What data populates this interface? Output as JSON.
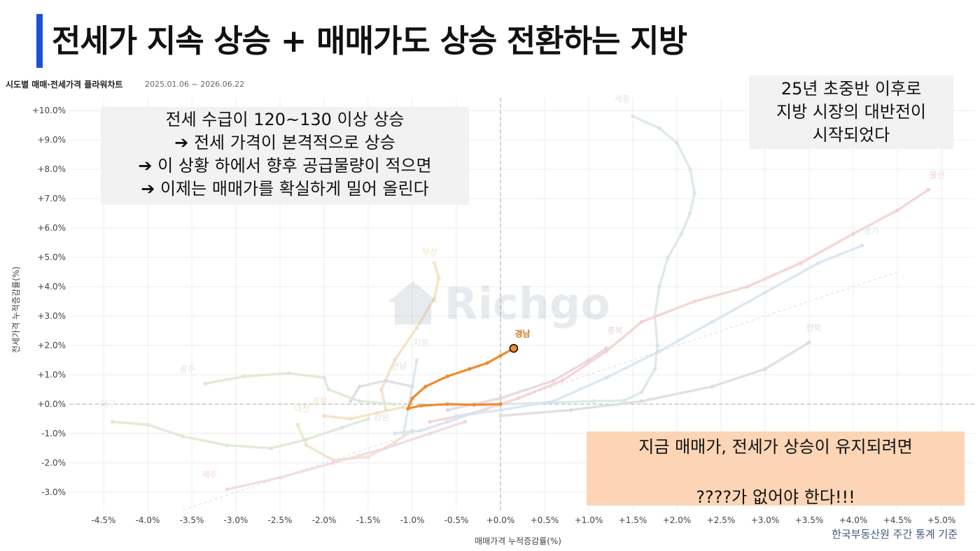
{
  "page": {
    "title": "전세가 지속 상승 + 매매가도 상승 전환하는 지방",
    "chart_title": "시도별 매매·전세가격 플라워차트",
    "date_range": "2025.01.06 ~ 2026.06.22",
    "x_axis_label": "매매가격 누적증감률(%)",
    "y_axis_label": "전세가격 누적증감률(%)",
    "source": "한국부동산원 주간 통계 기준",
    "watermark": "Richgo"
  },
  "notes": {
    "left": [
      "전세 수급이 120~130 이상 상승",
      "➔ 전세 가격이 본격적으로 상승",
      "➔  이 상황 하에서 향후 공급물량이 적으면",
      "➔ 이제는 매매가를 확실하게 밀어 올린다"
    ],
    "right": [
      "25년 초중반 이후로",
      "지방 시장의 대반전이",
      "시작되었다"
    ],
    "bottom": [
      "지금 매매가, 전세가 상승이 유지되려면",
      "",
      "????가  없어야 한다!!!"
    ]
  },
  "colors": {
    "accent_bar": "#1d4fd8",
    "highlight": "#f08a2c",
    "bottom_note_bg": "#fbd5b5",
    "note_bg": "#f2f2f2"
  },
  "chart_data": {
    "type": "line",
    "xlabel": "매매가격 누적증감률(%)",
    "ylabel": "전세가격 누적증감률(%)",
    "xlim": [
      -4.75,
      5.2
    ],
    "ylim": [
      -3.6,
      10.4
    ],
    "x_ticks": [
      -4.5,
      -4.0,
      -3.5,
      -3.0,
      -2.5,
      -2.0,
      -1.5,
      -1.0,
      -0.5,
      0.0,
      0.5,
      1.0,
      1.5,
      2.0,
      2.5,
      3.0,
      3.5,
      4.0,
      4.5,
      5.0
    ],
    "x_tick_labels": [
      "-4.5%",
      "-4.0%",
      "-3.5%",
      "-3.0%",
      "-2.5%",
      "-2.0%",
      "-1.5%",
      "-1.0%",
      "-0.5%",
      "+0.0%",
      "+0.5%",
      "+1.0%",
      "+1.5%",
      "+2.0%",
      "+2.5%",
      "+3.0%",
      "+3.5%",
      "+4.0%",
      "+4.5%",
      "+5.0%"
    ],
    "y_ticks": [
      -3,
      -2,
      -1,
      0,
      1,
      2,
      3,
      4,
      5,
      6,
      7,
      8,
      9,
      10
    ],
    "y_tick_labels": [
      "-3.0%",
      "-2.0%",
      "-1.0%",
      "+0.0%",
      "+1.0%",
      "+2.0%",
      "+3.0%",
      "+4.0%",
      "+5.0%",
      "+6.0%",
      "+7.0%",
      "+8.0%",
      "+9.0%",
      "+10.0%"
    ],
    "grid": true,
    "series": [
      {
        "name": "세종",
        "color": "#d9e6e6",
        "highlight": false,
        "label_at": [
          1.38,
          10.3
        ],
        "points": [
          [
            0.0,
            0.0
          ],
          [
            0.55,
            0.05
          ],
          [
            1.05,
            0.1
          ],
          [
            1.4,
            0.12
          ],
          [
            1.6,
            0.4
          ],
          [
            1.75,
            1.2
          ],
          [
            1.78,
            2.0
          ],
          [
            1.75,
            3.0
          ],
          [
            1.8,
            4.0
          ],
          [
            1.9,
            5.0
          ],
          [
            2.05,
            5.8
          ],
          [
            2.15,
            6.5
          ],
          [
            2.2,
            7.2
          ],
          [
            2.15,
            8.0
          ],
          [
            2.0,
            8.9
          ],
          [
            1.8,
            9.4
          ],
          [
            1.5,
            9.8
          ]
        ]
      },
      {
        "name": "울산",
        "color": "#f4cfcf",
        "highlight": false,
        "label_at": [
          4.95,
          7.7
        ],
        "points": [
          [
            -0.8,
            -0.6
          ],
          [
            -0.3,
            -0.3
          ],
          [
            0.2,
            0.2
          ],
          [
            0.7,
            0.8
          ],
          [
            1.2,
            1.8
          ],
          [
            1.6,
            2.8
          ],
          [
            2.2,
            3.5
          ],
          [
            2.8,
            4.0
          ],
          [
            3.4,
            4.8
          ],
          [
            4.0,
            5.8
          ],
          [
            4.5,
            6.6
          ],
          [
            4.85,
            7.3
          ]
        ]
      },
      {
        "name": "경기",
        "color": "#d7e3ef",
        "highlight": false,
        "label_at": [
          4.2,
          5.8
        ],
        "points": [
          [
            -0.5,
            -0.4
          ],
          [
            0.0,
            -0.2
          ],
          [
            0.6,
            0.1
          ],
          [
            1.2,
            0.9
          ],
          [
            1.8,
            1.8
          ],
          [
            2.4,
            2.8
          ],
          [
            3.0,
            3.8
          ],
          [
            3.6,
            4.8
          ],
          [
            4.1,
            5.4
          ]
        ]
      },
      {
        "name": "전북",
        "color": "#dcdcdc",
        "highlight": false,
        "label_at": [
          3.55,
          2.5
        ],
        "points": [
          [
            0.0,
            -0.4
          ],
          [
            0.8,
            -0.2
          ],
          [
            1.6,
            0.1
          ],
          [
            2.4,
            0.6
          ],
          [
            3.0,
            1.2
          ],
          [
            3.5,
            2.1
          ]
        ]
      },
      {
        "name": "충북",
        "color": "#e5d2de",
        "highlight": false,
        "label_at": [
          1.3,
          2.4
        ],
        "points": [
          [
            -0.6,
            -0.2
          ],
          [
            0.0,
            0.2
          ],
          [
            0.6,
            0.8
          ],
          [
            1.0,
            1.5
          ],
          [
            1.2,
            1.9
          ]
        ]
      },
      {
        "name": "부산",
        "color": "#f5dfbf",
        "highlight": false,
        "label_at": [
          -0.8,
          5.1
        ],
        "points": [
          [
            -1.3,
            -0.2
          ],
          [
            -1.35,
            0.5
          ],
          [
            -1.2,
            1.5
          ],
          [
            -0.95,
            2.6
          ],
          [
            -0.75,
            3.6
          ],
          [
            -0.7,
            4.3
          ],
          [
            -0.75,
            4.8
          ]
        ]
      },
      {
        "name": "지방",
        "color": "#dbe5ef",
        "highlight": false,
        "label_at": [
          -0.9,
          2.0
        ],
        "points": [
          [
            -1.1,
            -1.0
          ],
          [
            -1.05,
            -0.2
          ],
          [
            -1.0,
            0.6
          ],
          [
            -0.95,
            1.5
          ]
        ]
      },
      {
        "name": "전남",
        "color": "#dcdcdc",
        "highlight": false,
        "label_at": [
          -1.15,
          1.2
        ],
        "points": [
          [
            -1.7,
            0.1
          ],
          [
            -1.6,
            0.6
          ],
          [
            -1.3,
            0.8
          ],
          [
            -1.0,
            0.6
          ]
        ]
      },
      {
        "name": "광주",
        "color": "#dce8d5",
        "highlight": false,
        "label_at": [
          -3.55,
          1.1
        ],
        "points": [
          [
            -3.35,
            0.7
          ],
          [
            -2.9,
            0.95
          ],
          [
            -2.4,
            1.05
          ],
          [
            -2.0,
            0.9
          ],
          [
            -1.95,
            0.5
          ],
          [
            -1.6,
            0.1
          ],
          [
            -1.2,
            0.0
          ]
        ]
      },
      {
        "name": "대구",
        "color": "#dce8d5",
        "highlight": false,
        "label_at": [
          -4.45,
          -0.1
        ],
        "points": [
          [
            -4.4,
            -0.6
          ],
          [
            -4.0,
            -0.7
          ],
          [
            -3.6,
            -1.1
          ],
          [
            -3.1,
            -1.4
          ],
          [
            -2.6,
            -1.5
          ],
          [
            -2.2,
            -1.2
          ],
          [
            -1.8,
            -0.8
          ],
          [
            -1.5,
            -0.5
          ]
        ]
      },
      {
        "name": "대전",
        "color": "#ece3cc",
        "highlight": false,
        "label_at": [
          -2.25,
          -0.25
        ],
        "points": [
          [
            -2.3,
            -0.7
          ],
          [
            -2.2,
            -1.4
          ],
          [
            -1.9,
            -1.9
          ],
          [
            -1.5,
            -1.8
          ],
          [
            -1.2,
            -1.3
          ],
          [
            -1.0,
            -0.9
          ]
        ]
      },
      {
        "name": "경북",
        "color": "#f6dfc0",
        "highlight": false,
        "label_at": [
          -2.05,
          0.0
        ],
        "points": [
          [
            -2.0,
            -0.4
          ],
          [
            -1.7,
            -0.5
          ],
          [
            -1.4,
            -0.3
          ],
          [
            -1.1,
            -0.1
          ]
        ]
      },
      {
        "name": "강원",
        "color": "#d7e3ef",
        "highlight": false,
        "label_at": [
          -1.35,
          -0.55
        ],
        "points": [
          [
            -1.2,
            -1.0
          ],
          [
            -0.9,
            -0.9
          ],
          [
            -0.6,
            -0.6
          ],
          [
            -0.3,
            -0.3
          ]
        ]
      },
      {
        "name": "제주",
        "color": "#f2d6de",
        "highlight": false,
        "label_at": [
          -3.3,
          -2.5
        ],
        "points": [
          [
            -3.1,
            -2.9
          ],
          [
            -2.5,
            -2.5
          ],
          [
            -1.9,
            -2.0
          ],
          [
            -1.3,
            -1.5
          ],
          [
            -0.8,
            -1.0
          ],
          [
            -0.4,
            -0.6
          ]
        ]
      },
      {
        "name": "경남",
        "color": "#f08a2c",
        "highlight": true,
        "label_at": [
          0.25,
          2.3
        ],
        "points": [
          [
            0.0,
            0.0
          ],
          [
            -0.3,
            -0.02
          ],
          [
            -0.6,
            0.0
          ],
          [
            -0.9,
            -0.05
          ],
          [
            -1.05,
            -0.15
          ],
          [
            -1.0,
            0.2
          ],
          [
            -0.85,
            0.6
          ],
          [
            -0.6,
            0.95
          ],
          [
            -0.35,
            1.2
          ],
          [
            -0.15,
            1.4
          ],
          [
            0.0,
            1.65
          ],
          [
            0.15,
            1.9
          ]
        ]
      }
    ]
  }
}
